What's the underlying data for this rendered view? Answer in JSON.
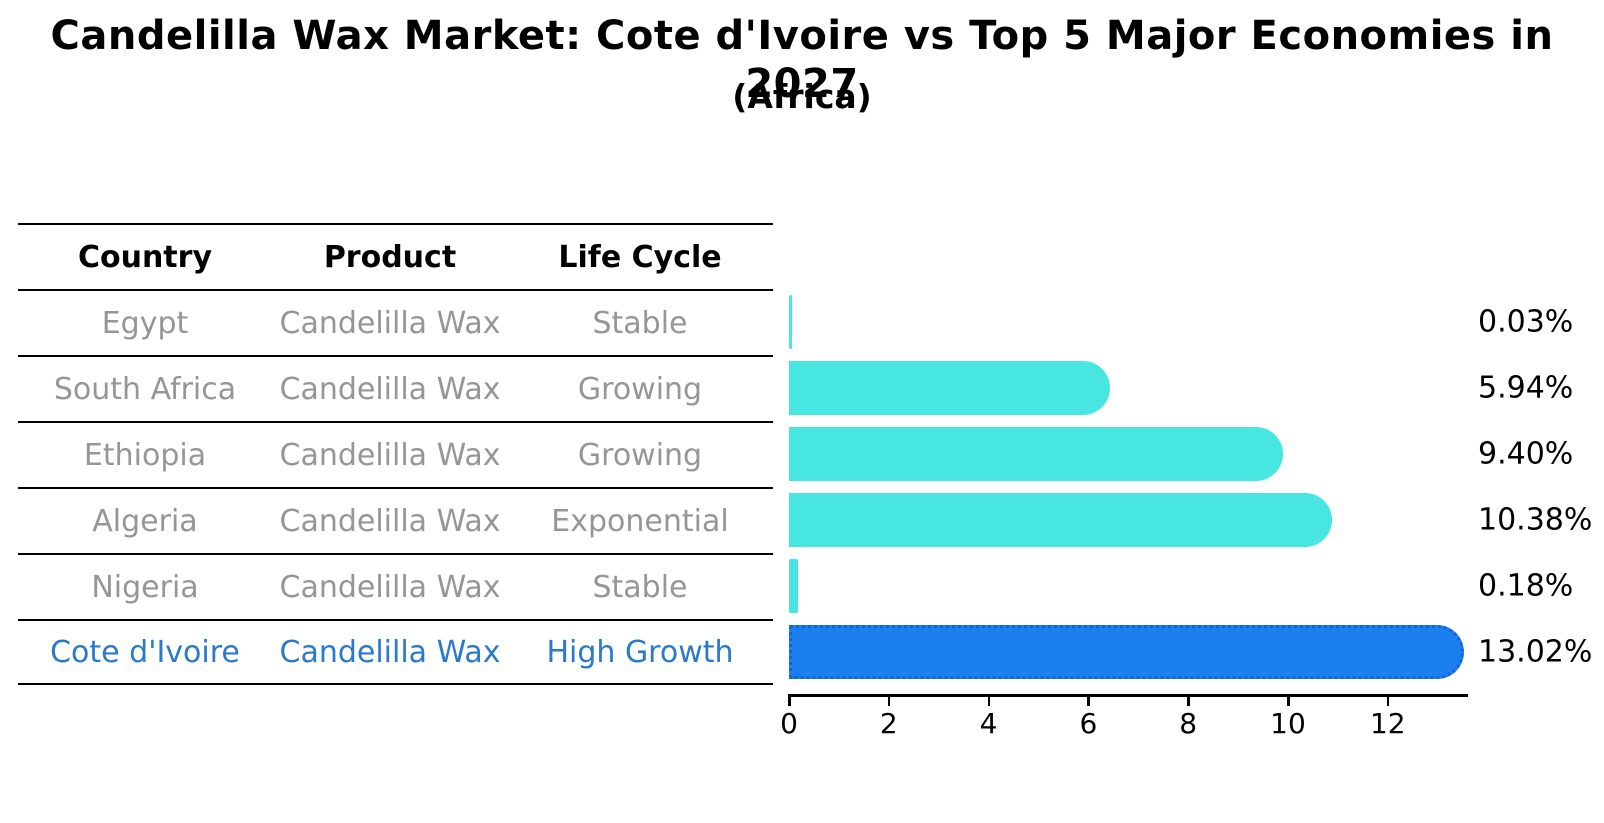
{
  "chart_data": {
    "type": "bar",
    "orientation": "horizontal",
    "title": "Candelilla Wax Market: Cote d'Ivoire vs Top 5 Major Economies in 2027",
    "subtitle": "(Africa)",
    "categories": [
      "Egypt",
      "South Africa",
      "Ethiopia",
      "Algeria",
      "Nigeria",
      "Cote d'Ivoire"
    ],
    "values": [
      0.03,
      5.94,
      9.4,
      10.38,
      0.18,
      13.02
    ],
    "value_labels": [
      "0.03%",
      "5.94%",
      "9.40%",
      "10.38%",
      "0.18%",
      "13.02%"
    ],
    "highlight_index": 5,
    "x_ticks": [
      0,
      2,
      4,
      6,
      8,
      10,
      12
    ],
    "xlim": [
      0,
      13.6
    ],
    "xlabel": "",
    "ylabel": "",
    "grid": false,
    "legend": false
  },
  "table": {
    "headers": [
      "Country",
      "Product",
      "Life Cycle"
    ],
    "rows": [
      {
        "country": "Egypt",
        "product": "Candelilla Wax",
        "life_cycle": "Stable",
        "highlight": false
      },
      {
        "country": "South Africa",
        "product": "Candelilla Wax",
        "life_cycle": "Growing",
        "highlight": false
      },
      {
        "country": "Ethiopia",
        "product": "Candelilla Wax",
        "life_cycle": "Growing",
        "highlight": false
      },
      {
        "country": "Algeria",
        "product": "Candelilla Wax",
        "life_cycle": "Exponential",
        "highlight": false
      },
      {
        "country": "Nigeria",
        "product": "Candelilla Wax",
        "life_cycle": "Stable",
        "highlight": false
      },
      {
        "country": "Cote d'Ivoire",
        "product": "Candelilla Wax",
        "life_cycle": "High Growth",
        "highlight": true
      }
    ]
  },
  "colors": {
    "background": "#FFFFFF",
    "text": "#000000",
    "muted_text": "#969696",
    "bar": "#48E6E1",
    "highlight_bar": "#1B80EE",
    "highlight_bar_dots": "#1663D6",
    "highlight_text": "#2B79CB"
  }
}
